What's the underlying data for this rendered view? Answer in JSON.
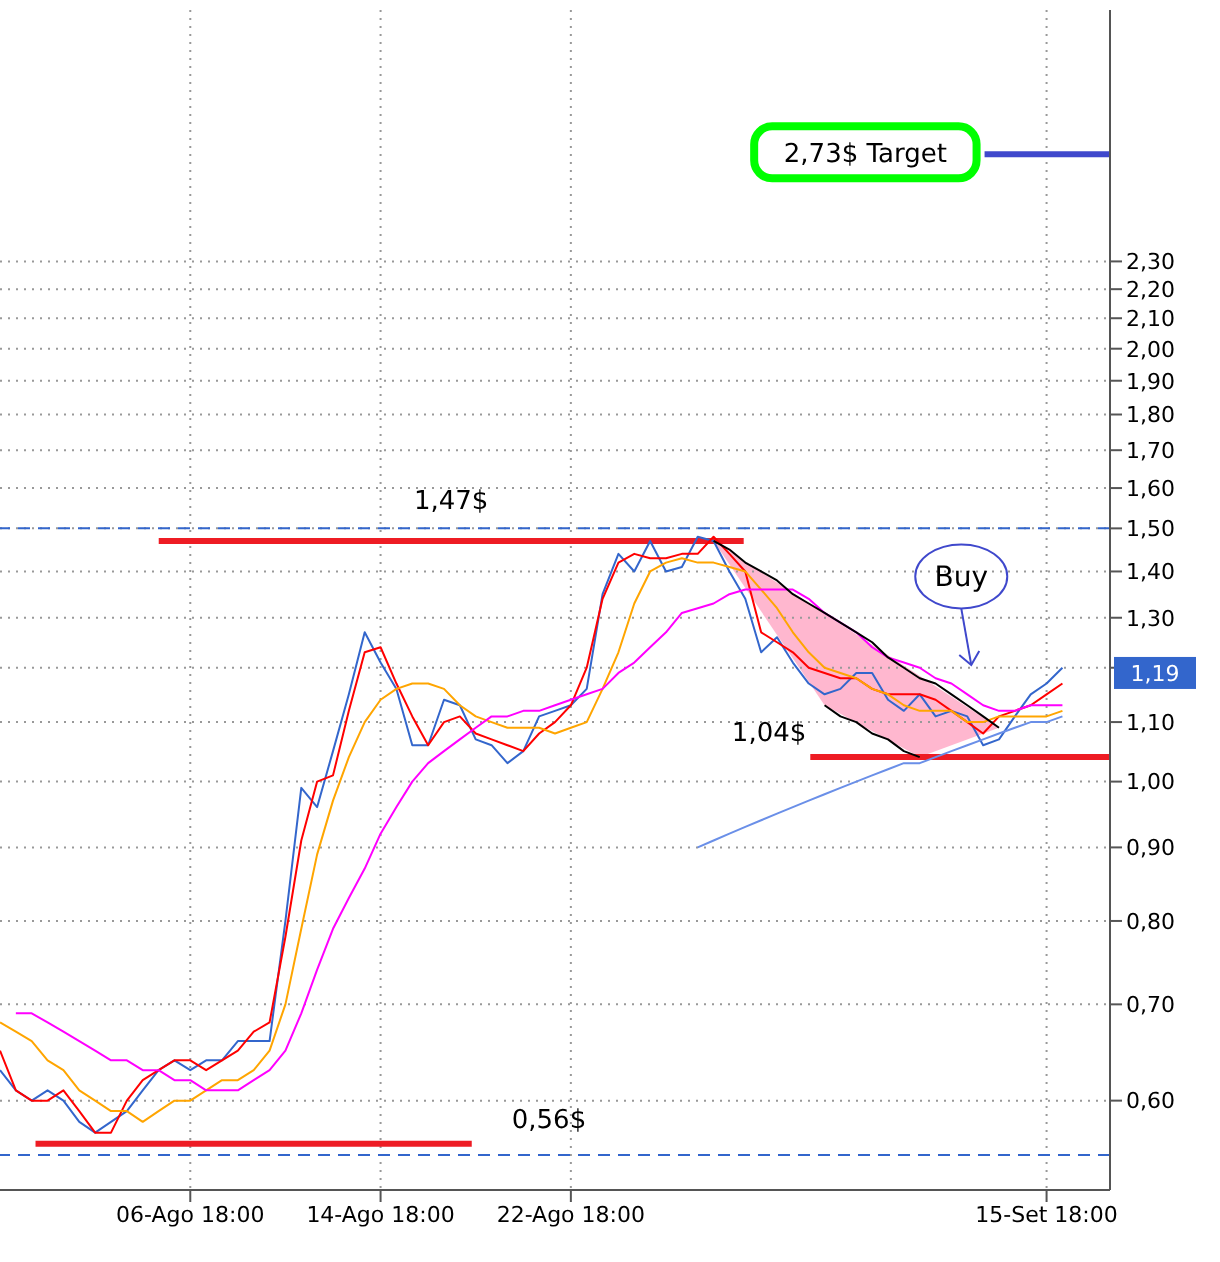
{
  "chart_data": {
    "type": "line",
    "log": "y",
    "grid": true,
    "marker": "none",
    "line_style": "solid",
    "categories": [
      null,
      null,
      null,
      null,
      null,
      null,
      null,
      null,
      null,
      null,
      null,
      null,
      "06-Ago 18:00",
      null,
      null,
      null,
      null,
      null,
      null,
      null,
      null,
      null,
      null,
      null,
      "14-Ago 18:00",
      null,
      null,
      null,
      null,
      null,
      null,
      null,
      null,
      null,
      null,
      null,
      "22-Ago 18:00",
      null,
      null,
      null,
      null,
      null,
      null,
      null,
      null,
      null,
      null,
      null,
      null,
      null,
      null,
      null,
      null,
      null,
      null,
      null,
      null,
      null,
      null,
      null,
      null,
      null,
      null,
      null,
      null,
      null,
      "15-Set 18:00",
      null,
      null,
      null,
      null
    ],
    "ylim": [
      0.52,
      3.44
    ],
    "yticks": [
      {
        "value": 0.6,
        "label": "0,60"
      },
      {
        "value": 0.7,
        "label": "0,70"
      },
      {
        "value": 0.8,
        "label": "0,80"
      },
      {
        "value": 0.9,
        "label": "0,90"
      },
      {
        "value": 1.0,
        "label": "1,00"
      },
      {
        "value": 1.1,
        "label": "1,10"
      },
      {
        "value": 1.2,
        "label": null
      },
      {
        "value": 1.3,
        "label": "1,30"
      },
      {
        "value": 1.4,
        "label": "1,40"
      },
      {
        "value": 1.5,
        "label": "1,50"
      },
      {
        "value": 1.6,
        "label": "1,60"
      },
      {
        "value": 1.7,
        "label": "1,70"
      },
      {
        "value": 1.8,
        "label": "1,80"
      },
      {
        "value": 1.9,
        "label": "1,90"
      },
      {
        "value": 2.0,
        "label": "2,00"
      },
      {
        "value": 2.1,
        "label": "2,10"
      },
      {
        "value": 2.2,
        "label": "2,20"
      },
      {
        "value": 2.3,
        "label": "2,30"
      }
    ],
    "series": [
      {
        "color": "#3366cc",
        "values": [
          0.63,
          0.61,
          0.6,
          0.61,
          0.6,
          0.58,
          0.57,
          0.58,
          0.59,
          0.61,
          0.63,
          0.64,
          0.63,
          0.64,
          0.64,
          0.66,
          0.66,
          0.66,
          0.8,
          0.99,
          0.96,
          1.05,
          1.15,
          1.27,
          1.21,
          1.16,
          1.06,
          1.06,
          1.14,
          1.13,
          1.07,
          1.06,
          1.03,
          1.05,
          1.11,
          1.12,
          1.13,
          1.16,
          1.35,
          1.44,
          1.4,
          1.47,
          1.4,
          1.41,
          1.48,
          1.47,
          1.4,
          1.34,
          1.23,
          1.26,
          1.21,
          1.17,
          1.15,
          1.16,
          1.19,
          1.19,
          1.14,
          1.12,
          1.15,
          1.11,
          1.12,
          1.11,
          1.06,
          1.07,
          1.11,
          1.15,
          1.17,
          1.2,
          null,
          null,
          null
        ]
      },
      {
        "color": "#ff0000",
        "values": [
          0.65,
          0.61,
          0.6,
          0.6,
          0.61,
          0.59,
          0.57,
          0.57,
          0.6,
          0.62,
          0.63,
          0.64,
          0.64,
          0.63,
          0.64,
          0.65,
          0.67,
          0.68,
          0.78,
          0.91,
          1.0,
          1.01,
          1.12,
          1.23,
          1.24,
          1.17,
          1.11,
          1.06,
          1.1,
          1.11,
          1.08,
          1.07,
          1.06,
          1.05,
          1.08,
          1.1,
          1.13,
          1.2,
          1.34,
          1.42,
          1.44,
          1.43,
          1.43,
          1.44,
          1.44,
          1.48,
          1.44,
          1.4,
          1.27,
          1.25,
          1.23,
          1.2,
          1.19,
          1.18,
          1.18,
          1.16,
          1.15,
          1.15,
          1.15,
          1.14,
          1.12,
          1.1,
          1.08,
          1.11,
          1.12,
          1.13,
          1.15,
          1.17,
          null,
          null,
          null
        ]
      },
      {
        "color": "#ffa500",
        "values": [
          0.68,
          0.67,
          0.66,
          0.64,
          0.63,
          0.61,
          0.6,
          0.59,
          0.59,
          0.58,
          0.59,
          0.6,
          0.6,
          0.61,
          0.62,
          0.62,
          0.63,
          0.65,
          0.7,
          0.79,
          0.89,
          0.97,
          1.04,
          1.1,
          1.14,
          1.16,
          1.17,
          1.17,
          1.16,
          1.13,
          1.11,
          1.1,
          1.09,
          1.09,
          1.09,
          1.08,
          1.09,
          1.1,
          1.16,
          1.23,
          1.33,
          1.4,
          1.42,
          1.43,
          1.42,
          1.42,
          1.41,
          1.4,
          1.36,
          1.32,
          1.27,
          1.23,
          1.2,
          1.19,
          1.18,
          1.16,
          1.15,
          1.13,
          1.12,
          1.12,
          1.12,
          1.1,
          1.1,
          1.11,
          1.11,
          1.11,
          1.11,
          1.12,
          null,
          null,
          null
        ]
      },
      {
        "color": "#ff00ff",
        "values": [
          null,
          0.69,
          0.69,
          0.68,
          0.67,
          0.66,
          0.65,
          0.64,
          0.64,
          0.63,
          0.63,
          0.62,
          0.62,
          0.61,
          0.61,
          0.61,
          0.62,
          0.63,
          0.65,
          0.69,
          0.74,
          0.79,
          0.83,
          0.87,
          0.92,
          0.96,
          1.0,
          1.03,
          1.05,
          1.07,
          1.09,
          1.11,
          1.11,
          1.12,
          1.12,
          1.13,
          1.14,
          1.15,
          1.16,
          1.19,
          1.21,
          1.24,
          1.27,
          1.31,
          1.32,
          1.33,
          1.35,
          1.36,
          1.36,
          1.36,
          1.36,
          1.34,
          1.31,
          1.29,
          1.27,
          1.24,
          1.22,
          1.21,
          1.2,
          1.18,
          1.17,
          1.15,
          1.13,
          1.12,
          1.12,
          1.13,
          1.13,
          1.13,
          null,
          null,
          null
        ]
      },
      {
        "color": "#6a8fe8",
        "values": [
          null,
          null,
          null,
          null,
          null,
          null,
          null,
          null,
          null,
          null,
          null,
          null,
          null,
          null,
          null,
          null,
          null,
          null,
          null,
          null,
          null,
          null,
          null,
          null,
          null,
          null,
          null,
          null,
          null,
          null,
          null,
          null,
          null,
          null,
          null,
          null,
          null,
          null,
          null,
          null,
          null,
          null,
          null,
          null,
          0.9,
          0.91,
          0.92,
          0.93,
          0.94,
          0.95,
          0.96,
          0.97,
          0.98,
          0.99,
          1.0,
          1.01,
          1.02,
          1.03,
          1.03,
          1.04,
          1.05,
          1.06,
          1.07,
          1.08,
          1.09,
          1.1,
          1.1,
          1.11,
          null,
          null,
          null
        ]
      },
      {
        "color": "#000000",
        "values": [
          null,
          null,
          null,
          null,
          null,
          null,
          null,
          null,
          null,
          null,
          null,
          null,
          null,
          null,
          null,
          null,
          null,
          null,
          null,
          null,
          null,
          null,
          null,
          null,
          null,
          null,
          null,
          null,
          null,
          null,
          null,
          null,
          null,
          null,
          null,
          null,
          null,
          null,
          null,
          null,
          null,
          null,
          null,
          null,
          null,
          1.47,
          1.45,
          1.42,
          1.4,
          1.38,
          1.35,
          1.33,
          1.31,
          1.29,
          1.27,
          1.25,
          1.22,
          1.2,
          1.18,
          1.17,
          1.15,
          1.13,
          1.11,
          1.09,
          null,
          null,
          null,
          null,
          null,
          null,
          null
        ]
      },
      {
        "color": "#000000",
        "values": [
          null,
          null,
          null,
          null,
          null,
          null,
          null,
          null,
          null,
          null,
          null,
          null,
          null,
          null,
          null,
          null,
          null,
          null,
          null,
          null,
          null,
          null,
          null,
          null,
          null,
          null,
          null,
          null,
          null,
          null,
          null,
          null,
          null,
          null,
          null,
          null,
          null,
          null,
          null,
          null,
          null,
          null,
          null,
          null,
          null,
          null,
          null,
          null,
          null,
          null,
          null,
          null,
          1.13,
          1.11,
          1.1,
          1.08,
          1.07,
          1.05,
          1.04,
          null,
          null,
          null,
          null,
          null,
          null,
          null,
          null,
          null,
          null,
          null,
          null
        ]
      }
    ],
    "ref_lines": [
      {
        "axis": "y",
        "value": 2.73,
        "label": "2,73$ Target",
        "color": "#3f48cc"
      },
      {
        "axis": "y",
        "value": 1.47,
        "label": "1,47$",
        "color": "#ee1c24"
      },
      {
        "axis": "y",
        "value": 1.04,
        "label": "1,04$",
        "color": "#ee1c24"
      },
      {
        "axis": "y",
        "value": 0.56,
        "label": "0,56$",
        "color": "#ee1c24"
      },
      {
        "axis": "y",
        "value": 1.5,
        "color": "#3366cc",
        "line_style": "dashed"
      },
      {
        "axis": "y",
        "value": 0.55,
        "color": "#3366cc",
        "line_style": "dashed"
      }
    ],
    "annotations": [
      "Buy",
      {
        "text": "1,19",
        "y": 1.19
      }
    ]
  }
}
